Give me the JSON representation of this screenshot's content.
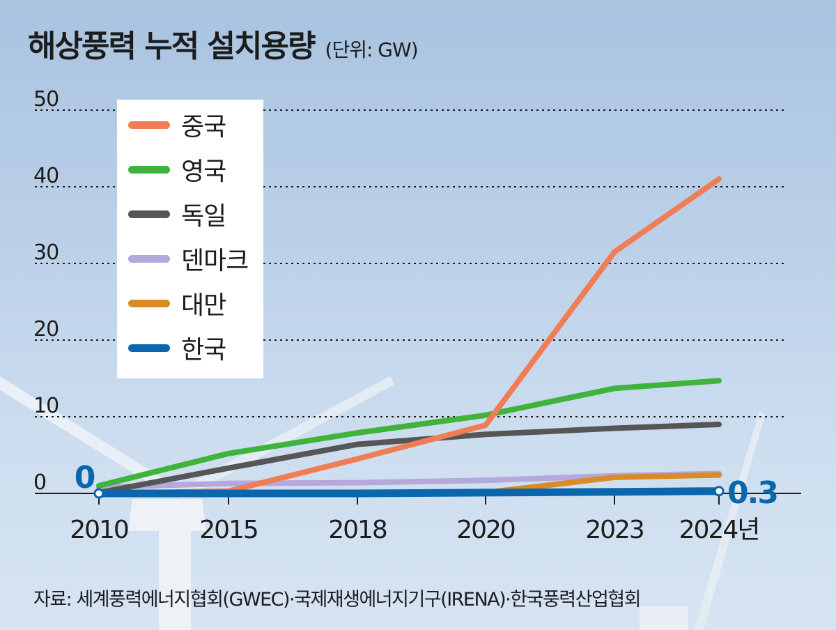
{
  "title": "해상풍력 누적 설치용량",
  "unit_label": "(단위: GW)",
  "source": "자료: 세계풍력에너지협회(GWEC)·국제재생에너지기구(IRENA)·한국풍력산업협회",
  "chart_data": {
    "type": "line",
    "title": "해상풍력 누적 설치용량",
    "ylabel": "(단위: GW)",
    "xlabel": "",
    "x": [
      "2010",
      "2015",
      "2018",
      "2020",
      "2023",
      "2024년"
    ],
    "ylim": [
      0,
      50
    ],
    "yticks": [
      "0",
      "10",
      "20",
      "30",
      "40",
      "50"
    ],
    "grid": true,
    "legend_position": "top-left",
    "series": [
      {
        "name": "중국",
        "color": "#f07d56",
        "values": [
          0.0,
          0.3,
          4.5,
          8.9,
          31.5,
          41
        ]
      },
      {
        "name": "영국",
        "color": "#3fb33b",
        "values": [
          1.0,
          5.2,
          7.9,
          10.2,
          13.7,
          14.7
        ]
      },
      {
        "name": "독일",
        "color": "#565656",
        "values": [
          0.1,
          3.3,
          6.4,
          7.7,
          8.5,
          9.0
        ]
      },
      {
        "name": "덴마크",
        "color": "#b4a8dc",
        "values": [
          0.8,
          1.3,
          1.4,
          1.7,
          2.3,
          2.6
        ]
      },
      {
        "name": "대만",
        "color": "#d98b2a",
        "values": [
          0.0,
          0.0,
          0.0,
          0.1,
          2.1,
          2.4
        ]
      },
      {
        "name": "한국",
        "color": "#0a67ad",
        "values": [
          0.0,
          0.0,
          0.0,
          0.1,
          0.2,
          0.3
        ]
      }
    ],
    "annotations": {
      "start": "0",
      "end": "0.3"
    }
  }
}
